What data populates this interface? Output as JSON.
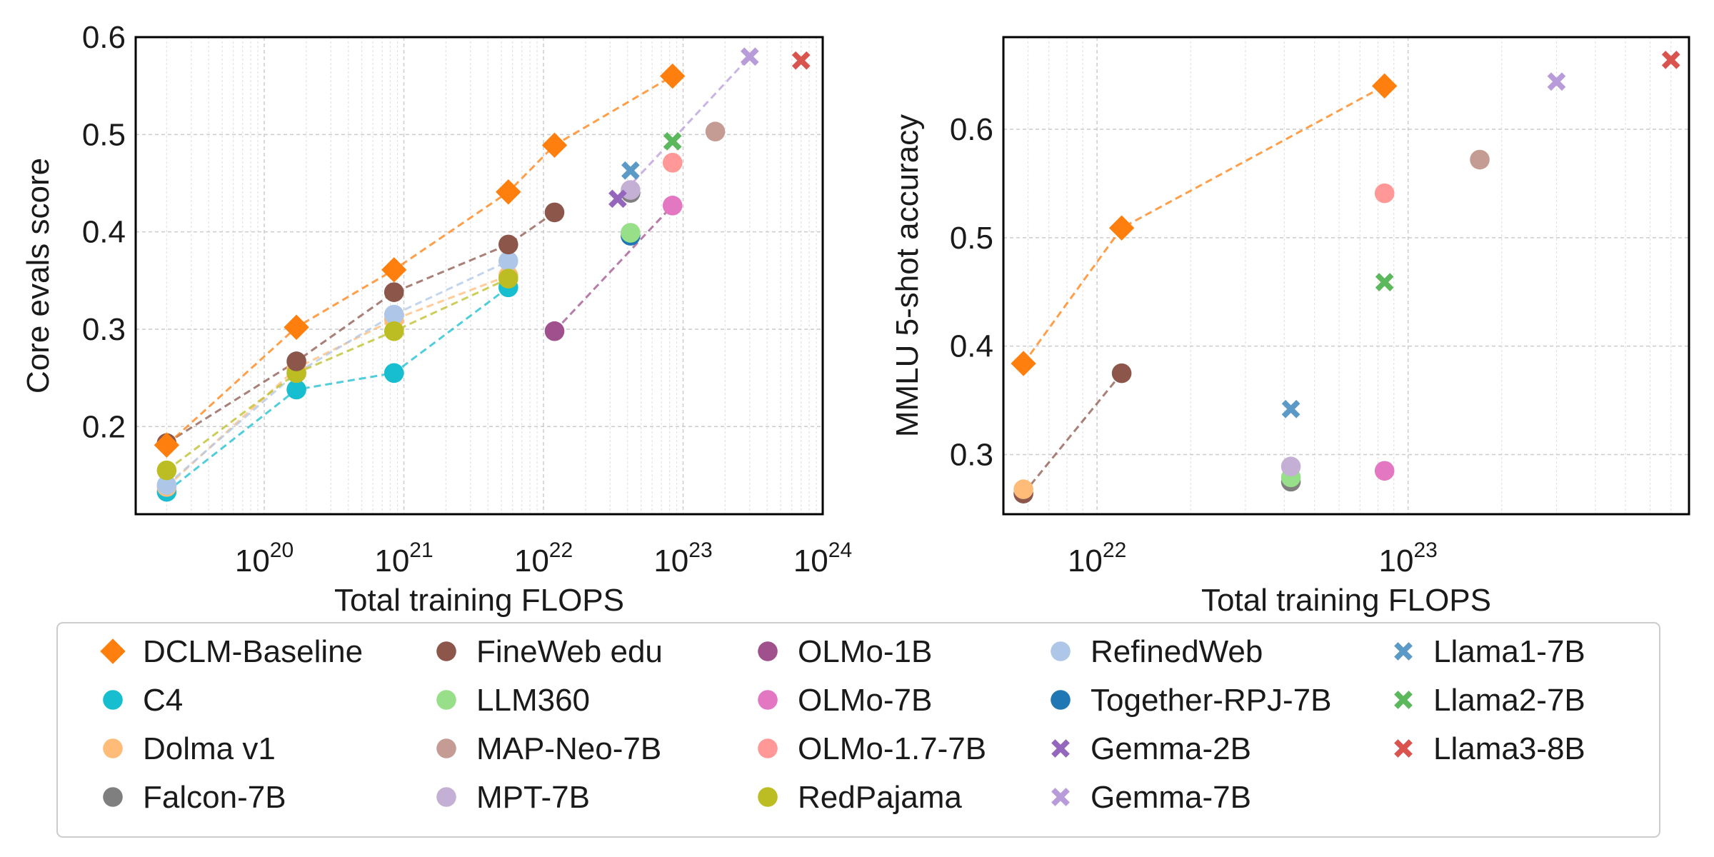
{
  "colors": {
    "DCLM-Baseline": "#ff7f0e",
    "C4": "#17becf",
    "Dolma v1": "#ffbb78",
    "Falcon-7B": "#7f7f7f",
    "FineWeb edu": "#8c564b",
    "LLM360": "#98df8a",
    "MAP-Neo-7B": "#c49c94",
    "MPT-7B": "#c5b0d5",
    "OLMo-1B": "#a0508c",
    "OLMo-7B": "#e377c2",
    "OLMo-1.7-7B": "#ff9896",
    "RedPajama": "#bcbd22",
    "RefinedWeb": "#aec7e8",
    "Together-RPJ-7B": "#1f77b4",
    "Gemma-2B": "#9467bd",
    "Gemma-7B": "#b89bd9",
    "Llama1-7B": "#5b9ac6",
    "Llama2-7B": "#5cb85c",
    "Llama3-8B": "#d9534f"
  },
  "legend": {
    "columns": [
      [
        {
          "label": "DCLM-Baseline",
          "marker": "diamond"
        },
        {
          "label": "C4",
          "marker": "circle"
        },
        {
          "label": "Dolma v1",
          "marker": "circle"
        },
        {
          "label": "Falcon-7B",
          "marker": "circle"
        }
      ],
      [
        {
          "label": "FineWeb edu",
          "marker": "circle"
        },
        {
          "label": "LLM360",
          "marker": "circle"
        },
        {
          "label": "MAP-Neo-7B",
          "marker": "circle"
        },
        {
          "label": "MPT-7B",
          "marker": "circle"
        }
      ],
      [
        {
          "label": "OLMo-1B",
          "marker": "circle"
        },
        {
          "label": "OLMo-7B",
          "marker": "circle"
        },
        {
          "label": "OLMo-1.7-7B",
          "marker": "circle"
        },
        {
          "label": "RedPajama",
          "marker": "circle"
        }
      ],
      [
        {
          "label": "RefinedWeb",
          "marker": "circle"
        },
        {
          "label": "Together-RPJ-7B",
          "marker": "circle"
        },
        {
          "label": "Gemma-2B",
          "marker": "x"
        },
        {
          "label": "Gemma-7B",
          "marker": "x"
        }
      ],
      [
        {
          "label": "Llama1-7B",
          "marker": "x"
        },
        {
          "label": "Llama2-7B",
          "marker": "x"
        },
        {
          "label": "Llama3-8B",
          "marker": "x"
        }
      ]
    ]
  },
  "chart_data": [
    {
      "type": "line",
      "xlabel": "Total training FLOPS",
      "ylabel": "Core evals score",
      "xscale": "log",
      "xlim": [
        1.2e+19,
        1e+24
      ],
      "ylim": [
        0.11,
        0.6
      ],
      "xticks": [
        1e+20,
        1e+21,
        1e+22,
        1e+23,
        1e+24
      ],
      "xtick_labels": [
        {
          "base": "10",
          "exp": "20"
        },
        {
          "base": "10",
          "exp": "21"
        },
        {
          "base": "10",
          "exp": "22"
        },
        {
          "base": "10",
          "exp": "23"
        },
        {
          "base": "10",
          "exp": "24"
        }
      ],
      "yticks": [
        0.2,
        0.3,
        0.4,
        0.5,
        0.6
      ],
      "ytick_labels": [
        "0.2",
        "0.3",
        "0.4",
        "0.5",
        "0.6"
      ],
      "grid": true,
      "series": [
        {
          "name": "C4",
          "marker": "circle",
          "dashed": true,
          "points": [
            [
              2e+19,
              0.133
            ],
            [
              1.7e+20,
              0.238
            ],
            [
              8.5e+20,
              0.255
            ],
            [
              5.6e+21,
              0.343
            ]
          ]
        },
        {
          "name": "Dolma v1",
          "marker": "circle",
          "dashed": true,
          "points": [
            [
              2e+19,
              0.138
            ],
            [
              1.7e+20,
              0.26
            ],
            [
              8.5e+20,
              0.31
            ],
            [
              5.6e+21,
              0.355
            ]
          ]
        },
        {
          "name": "RefinedWeb",
          "marker": "circle",
          "dashed": true,
          "points": [
            [
              2e+19,
              0.14
            ],
            [
              1.7e+20,
              0.255
            ],
            [
              8.5e+20,
              0.315
            ],
            [
              5.6e+21,
              0.37
            ]
          ]
        },
        {
          "name": "RedPajama",
          "marker": "circle",
          "dashed": true,
          "points": [
            [
              2e+19,
              0.155
            ],
            [
              1.7e+20,
              0.255
            ],
            [
              8.5e+20,
              0.298
            ],
            [
              5.6e+21,
              0.352
            ]
          ]
        },
        {
          "name": "FineWeb edu",
          "marker": "circle",
          "dashed": true,
          "points": [
            [
              2e+19,
              0.183
            ],
            [
              1.7e+20,
              0.267
            ],
            [
              8.5e+20,
              0.338
            ],
            [
              5.6e+21,
              0.387
            ],
            [
              1.2e+22,
              0.42
            ]
          ]
        },
        {
          "name": "DCLM-Baseline",
          "marker": "diamond",
          "dashed": true,
          "points": [
            [
              2e+19,
              0.181
            ],
            [
              1.7e+20,
              0.302
            ],
            [
              8.5e+20,
              0.361
            ],
            [
              5.6e+21,
              0.441
            ],
            [
              1.2e+22,
              0.489
            ],
            [
              8.4e+22,
              0.56
            ]
          ]
        },
        {
          "name": "OLMo-1B",
          "marker": "circle",
          "dashed": false,
          "points": [
            [
              1.2e+22,
              0.298
            ]
          ]
        },
        {
          "name": "OLMo-7B",
          "marker": "circle",
          "dashed": false,
          "points": [
            [
              8.4e+22,
              0.427
            ]
          ]
        },
        {
          "name": "OLMo-1.7-7B",
          "marker": "circle",
          "dashed": false,
          "points": [
            [
              8.4e+22,
              0.471
            ]
          ]
        },
        {
          "name": "Together-RPJ-7B",
          "marker": "circle",
          "dashed": false,
          "points": [
            [
              4.2e+22,
              0.396
            ]
          ]
        },
        {
          "name": "LLM360",
          "marker": "circle",
          "dashed": false,
          "points": [
            [
              4.2e+22,
              0.399
            ]
          ]
        },
        {
          "name": "Falcon-7B",
          "marker": "circle",
          "dashed": false,
          "points": [
            [
              4.2e+22,
              0.44
            ]
          ]
        },
        {
          "name": "MPT-7B",
          "marker": "circle",
          "dashed": false,
          "points": [
            [
              4.2e+22,
              0.443
            ]
          ]
        },
        {
          "name": "MAP-Neo-7B",
          "marker": "circle",
          "dashed": false,
          "points": [
            [
              1.7e+23,
              0.503
            ]
          ]
        },
        {
          "name": "Gemma-2B",
          "marker": "x",
          "dashed": false,
          "points": [
            [
              3.4e+22,
              0.434
            ]
          ]
        },
        {
          "name": "Llama1-7B",
          "marker": "x",
          "dashed": false,
          "points": [
            [
              4.2e+22,
              0.463
            ]
          ]
        },
        {
          "name": "Llama2-7B",
          "marker": "x",
          "dashed": false,
          "points": [
            [
              8.4e+22,
              0.493
            ]
          ]
        },
        {
          "name": "Gemma-7B",
          "marker": "x",
          "dashed": false,
          "points": [
            [
              3e+23,
              0.58
            ]
          ]
        },
        {
          "name": "Llama3-8B",
          "marker": "x",
          "dashed": false,
          "points": [
            [
              7e+23,
              0.576
            ]
          ]
        }
      ],
      "trend_lines": [
        {
          "color_of": "OLMo-1B",
          "points": [
            [
              1.2e+22,
              0.298
            ],
            [
              8.4e+22,
              0.427
            ]
          ]
        },
        {
          "color_of": "Gemma-7B",
          "points": [
            [
              3.4e+22,
              0.434
            ],
            [
              3e+23,
              0.58
            ]
          ]
        }
      ]
    },
    {
      "type": "line",
      "xlabel": "Total training FLOPS",
      "ylabel": "MMLU 5-shot accuracy",
      "xscale": "log",
      "xlim": [
        5e+21,
        8e+23
      ],
      "ylim": [
        0.245,
        0.685
      ],
      "xticks": [
        1e+22,
        1e+23
      ],
      "xtick_labels": [
        {
          "base": "10",
          "exp": "22"
        },
        {
          "base": "10",
          "exp": "23"
        }
      ],
      "yticks": [
        0.3,
        0.4,
        0.5,
        0.6
      ],
      "ytick_labels": [
        "0.3",
        "0.4",
        "0.5",
        "0.6"
      ],
      "grid": true,
      "series": [
        {
          "name": "DCLM-Baseline",
          "marker": "diamond",
          "dashed": true,
          "points": [
            [
              5.8e+21,
              0.384
            ],
            [
              1.2e+22,
              0.509
            ],
            [
              8.4e+22,
              0.64
            ]
          ]
        },
        {
          "name": "FineWeb edu",
          "marker": "circle",
          "dashed": true,
          "points": [
            [
              5.8e+21,
              0.264
            ],
            [
              1.2e+22,
              0.375
            ]
          ]
        },
        {
          "name": "Dolma v1",
          "marker": "circle",
          "dashed": false,
          "points": [
            [
              5.8e+21,
              0.268
            ]
          ]
        },
        {
          "name": "Falcon-7B",
          "marker": "circle",
          "dashed": false,
          "points": [
            [
              4.2e+22,
              0.275
            ]
          ]
        },
        {
          "name": "LLM360",
          "marker": "circle",
          "dashed": false,
          "points": [
            [
              4.2e+22,
              0.279
            ]
          ]
        },
        {
          "name": "MPT-7B",
          "marker": "circle",
          "dashed": false,
          "points": [
            [
              4.2e+22,
              0.289
            ]
          ]
        },
        {
          "name": "OLMo-7B",
          "marker": "circle",
          "dashed": false,
          "points": [
            [
              8.4e+22,
              0.285
            ]
          ]
        },
        {
          "name": "OLMo-1.7-7B",
          "marker": "circle",
          "dashed": false,
          "points": [
            [
              8.4e+22,
              0.541
            ]
          ]
        },
        {
          "name": "MAP-Neo-7B",
          "marker": "circle",
          "dashed": false,
          "points": [
            [
              1.7e+23,
              0.572
            ]
          ]
        },
        {
          "name": "Llama1-7B",
          "marker": "x",
          "dashed": false,
          "points": [
            [
              4.2e+22,
              0.342
            ]
          ]
        },
        {
          "name": "Llama2-7B",
          "marker": "x",
          "dashed": false,
          "points": [
            [
              8.4e+22,
              0.459
            ]
          ]
        },
        {
          "name": "Gemma-7B",
          "marker": "x",
          "dashed": false,
          "points": [
            [
              3e+23,
              0.644
            ]
          ]
        },
        {
          "name": "Llama3-8B",
          "marker": "x",
          "dashed": false,
          "points": [
            [
              7e+23,
              0.664
            ]
          ]
        }
      ],
      "trend_lines": []
    }
  ]
}
